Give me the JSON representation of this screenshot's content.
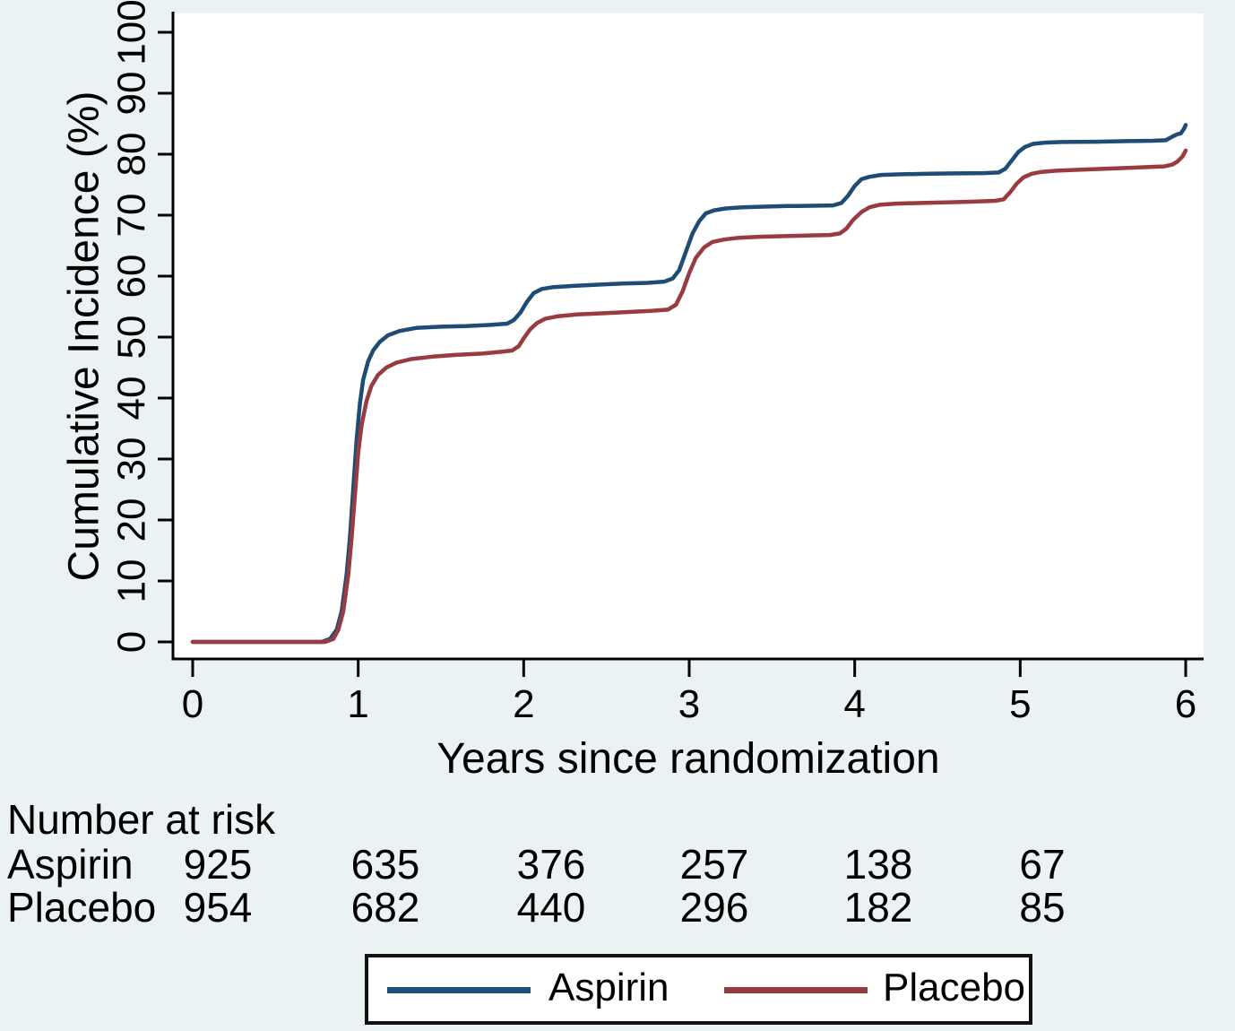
{
  "background_color": "#eaf2f3",
  "plot_bg": "#ffffff",
  "axis_color": "#000000",
  "chart_data": {
    "type": "line",
    "title": "",
    "xlabel": "Years since randomization",
    "ylabel": "Cumulative Incidence (%)",
    "xlim": [
      0,
      6
    ],
    "ylim": [
      0,
      100
    ],
    "xticks": [
      0,
      1,
      2,
      3,
      4,
      5,
      6
    ],
    "yticks": [
      0,
      10,
      20,
      30,
      40,
      50,
      60,
      70,
      80,
      90,
      100
    ],
    "grid": false,
    "legend_position": "bottom-center-boxed",
    "ytick_label_angle": 90,
    "series": [
      {
        "name": "Aspirin",
        "color": "#1e4c74",
        "points": [
          [
            0,
            0
          ],
          [
            0.78,
            0
          ],
          [
            0.83,
            0.5
          ],
          [
            0.87,
            2
          ],
          [
            0.9,
            5
          ],
          [
            0.93,
            11
          ],
          [
            0.95,
            17
          ],
          [
            0.97,
            25
          ],
          [
            0.99,
            33
          ],
          [
            1.01,
            39
          ],
          [
            1.03,
            43
          ],
          [
            1.06,
            46
          ],
          [
            1.09,
            47.8
          ],
          [
            1.13,
            49.2
          ],
          [
            1.18,
            50.3
          ],
          [
            1.25,
            51
          ],
          [
            1.35,
            51.5
          ],
          [
            1.5,
            51.7
          ],
          [
            1.65,
            51.8
          ],
          [
            1.8,
            52
          ],
          [
            1.9,
            52.2
          ],
          [
            1.94,
            52.8
          ],
          [
            1.98,
            54
          ],
          [
            2.02,
            55.8
          ],
          [
            2.06,
            57.2
          ],
          [
            2.11,
            57.9
          ],
          [
            2.18,
            58.2
          ],
          [
            2.3,
            58.4
          ],
          [
            2.45,
            58.6
          ],
          [
            2.6,
            58.8
          ],
          [
            2.75,
            58.9
          ],
          [
            2.85,
            59.1
          ],
          [
            2.9,
            59.6
          ],
          [
            2.94,
            61
          ],
          [
            2.98,
            64
          ],
          [
            3.02,
            67
          ],
          [
            3.06,
            69
          ],
          [
            3.1,
            70.3
          ],
          [
            3.15,
            70.8
          ],
          [
            3.22,
            71.1
          ],
          [
            3.32,
            71.3
          ],
          [
            3.45,
            71.4
          ],
          [
            3.6,
            71.5
          ],
          [
            3.75,
            71.55
          ],
          [
            3.87,
            71.6
          ],
          [
            3.92,
            72
          ],
          [
            3.96,
            73.2
          ],
          [
            4.0,
            74.8
          ],
          [
            4.04,
            75.9
          ],
          [
            4.09,
            76.3
          ],
          [
            4.16,
            76.6
          ],
          [
            4.28,
            76.7
          ],
          [
            4.45,
            76.8
          ],
          [
            4.62,
            76.85
          ],
          [
            4.78,
            76.9
          ],
          [
            4.87,
            77
          ],
          [
            4.91,
            77.6
          ],
          [
            4.95,
            79
          ],
          [
            4.99,
            80.4
          ],
          [
            5.03,
            81.2
          ],
          [
            5.08,
            81.7
          ],
          [
            5.15,
            81.9
          ],
          [
            5.25,
            82
          ],
          [
            5.45,
            82.05
          ],
          [
            5.65,
            82.15
          ],
          [
            5.8,
            82.2
          ],
          [
            5.88,
            82.3
          ],
          [
            5.92,
            82.9
          ],
          [
            5.95,
            83.3
          ],
          [
            5.97,
            83.4
          ],
          [
            5.99,
            84.2
          ],
          [
            6.0,
            84.8
          ]
        ]
      },
      {
        "name": "Placebo",
        "color": "#983b42",
        "points": [
          [
            0,
            0
          ],
          [
            0.8,
            0
          ],
          [
            0.85,
            0.5
          ],
          [
            0.88,
            2
          ],
          [
            0.91,
            5
          ],
          [
            0.94,
            11
          ],
          [
            0.96,
            17
          ],
          [
            0.98,
            24
          ],
          [
            1.0,
            31
          ],
          [
            1.02,
            35.5
          ],
          [
            1.05,
            39.5
          ],
          [
            1.08,
            42
          ],
          [
            1.12,
            43.8
          ],
          [
            1.17,
            45
          ],
          [
            1.23,
            45.8
          ],
          [
            1.32,
            46.4
          ],
          [
            1.45,
            46.8
          ],
          [
            1.6,
            47.1
          ],
          [
            1.75,
            47.3
          ],
          [
            1.87,
            47.6
          ],
          [
            1.93,
            47.8
          ],
          [
            1.97,
            48.5
          ],
          [
            2.0,
            49.8
          ],
          [
            2.04,
            51.3
          ],
          [
            2.08,
            52.3
          ],
          [
            2.13,
            53
          ],
          [
            2.2,
            53.4
          ],
          [
            2.32,
            53.7
          ],
          [
            2.47,
            53.9
          ],
          [
            2.62,
            54.1
          ],
          [
            2.77,
            54.3
          ],
          [
            2.87,
            54.5
          ],
          [
            2.92,
            55.3
          ],
          [
            2.96,
            57.5
          ],
          [
            3.0,
            60.5
          ],
          [
            3.04,
            63
          ],
          [
            3.09,
            64.7
          ],
          [
            3.14,
            65.6
          ],
          [
            3.21,
            66
          ],
          [
            3.3,
            66.3
          ],
          [
            3.42,
            66.45
          ],
          [
            3.55,
            66.55
          ],
          [
            3.7,
            66.65
          ],
          [
            3.85,
            66.75
          ],
          [
            3.91,
            67
          ],
          [
            3.95,
            67.8
          ],
          [
            3.99,
            69.2
          ],
          [
            4.04,
            70.5
          ],
          [
            4.09,
            71.3
          ],
          [
            4.15,
            71.7
          ],
          [
            4.25,
            71.9
          ],
          [
            4.4,
            72
          ],
          [
            4.55,
            72.1
          ],
          [
            4.7,
            72.2
          ],
          [
            4.85,
            72.35
          ],
          [
            4.9,
            72.6
          ],
          [
            4.94,
            73.8
          ],
          [
            4.98,
            75.2
          ],
          [
            5.02,
            76.2
          ],
          [
            5.07,
            76.8
          ],
          [
            5.13,
            77.1
          ],
          [
            5.22,
            77.3
          ],
          [
            5.4,
            77.5
          ],
          [
            5.6,
            77.7
          ],
          [
            5.78,
            77.9
          ],
          [
            5.87,
            78
          ],
          [
            5.92,
            78.3
          ],
          [
            5.95,
            78.8
          ],
          [
            5.98,
            79.6
          ],
          [
            6.0,
            80.6
          ]
        ]
      }
    ]
  },
  "risk_table": {
    "title": "Number at risk",
    "rows": [
      {
        "label": "Aspirin",
        "values": [
          "925",
          "635",
          "376",
          "257",
          "138",
          "67"
        ]
      },
      {
        "label": "Placebo",
        "values": [
          "954",
          "682",
          "440",
          "296",
          "182",
          "85"
        ]
      }
    ]
  },
  "legend": {
    "items": [
      {
        "label": "Aspirin",
        "color": "#1e4c74"
      },
      {
        "label": "Placebo",
        "color": "#983b42"
      }
    ]
  }
}
